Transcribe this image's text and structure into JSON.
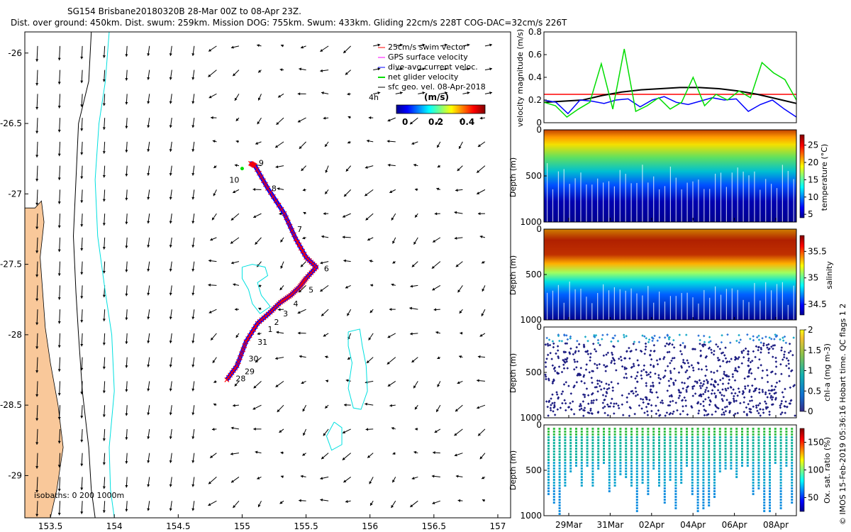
{
  "header": {
    "title": "SG154 Brisbane20180320B 28-Mar 00Z to 08-Apr 23Z.",
    "subtitle": "Dist. over ground: 450km. Dist. swum: 259km. Mission DOG: 755km. Swum: 433km. Gliding 22cm/s 228T COG-DAC=32cm/s 226T"
  },
  "colors": {
    "land": "#f9c89a",
    "isobath200": "#000000",
    "isobath1000": "#00e0e0",
    "track_red": "#ff0000",
    "track_blue": "#0000ff",
    "green": "#00dd00",
    "black": "#000000"
  },
  "chart_data": [
    {
      "id": "map",
      "type": "scatter",
      "xlabel": "",
      "ylabel": "",
      "xlim": [
        153.3,
        157.1
      ],
      "ylim": [
        -29.3,
        -25.85
      ],
      "xticks": [
        "153.5",
        "154",
        "154.5",
        "155",
        "155.5",
        "156",
        "156.5",
        "157"
      ],
      "yticks": [
        "-26",
        "-26.5",
        "-27",
        "-27.5",
        "-28",
        "-28.5",
        "-29"
      ],
      "isobath_label": "isobaths: 0   200  1000m",
      "legend": [
        {
          "label": "25cm/s swim vector",
          "color": "#ff0000"
        },
        {
          "label": "GPS surface velocity",
          "color": "#ff00ff"
        },
        {
          "label": "dive-avg current veloc.",
          "color": "#0000ff"
        },
        {
          "label": "net glider velocity",
          "color": "#00dd00"
        },
        {
          "label": "sfc geo. vel. 08-Apr-2018",
          "color": "#000000"
        }
      ],
      "legend_scale_label": "4h",
      "colorbar": {
        "label": "(m/s)",
        "ticks": [
          "0",
          "0.2",
          "0.4"
        ]
      },
      "track": [
        [
          154.88,
          -28.32
        ],
        [
          154.96,
          -28.22
        ],
        [
          155.03,
          -28.05
        ],
        [
          155.12,
          -27.92
        ],
        [
          155.22,
          -27.84
        ],
        [
          155.3,
          -27.77
        ],
        [
          155.38,
          -27.72
        ],
        [
          155.45,
          -27.66
        ],
        [
          155.5,
          -27.6
        ],
        [
          155.58,
          -27.52
        ],
        [
          155.5,
          -27.45
        ],
        [
          155.42,
          -27.32
        ],
        [
          155.33,
          -27.14
        ],
        [
          155.2,
          -26.96
        ],
        [
          155.1,
          -26.8
        ],
        [
          155.06,
          -26.78
        ]
      ],
      "dive_labels": [
        {
          "t": "9",
          "x": 155.13,
          "y": -26.8
        },
        {
          "t": "10",
          "x": 154.9,
          "y": -26.92
        },
        {
          "t": "8",
          "x": 155.23,
          "y": -26.98
        },
        {
          "t": "7",
          "x": 155.43,
          "y": -27.27
        },
        {
          "t": "6",
          "x": 155.64,
          "y": -27.55
        },
        {
          "t": "5",
          "x": 155.52,
          "y": -27.7
        },
        {
          "t": "4",
          "x": 155.4,
          "y": -27.8
        },
        {
          "t": "3",
          "x": 155.32,
          "y": -27.87
        },
        {
          "t": "2",
          "x": 155.25,
          "y": -27.93
        },
        {
          "t": "1",
          "x": 155.2,
          "y": -27.98
        },
        {
          "t": "31",
          "x": 155.12,
          "y": -28.07
        },
        {
          "t": "30",
          "x": 155.05,
          "y": -28.19
        },
        {
          "t": "29",
          "x": 155.02,
          "y": -28.28
        },
        {
          "t": "28",
          "x": 154.95,
          "y": -28.33
        }
      ],
      "cyan_contours": [
        [
          [
            155.0,
            -27.52
          ],
          [
            155.08,
            -27.5
          ],
          [
            155.18,
            -27.52
          ],
          [
            155.2,
            -27.58
          ],
          [
            155.12,
            -27.63
          ],
          [
            155.15,
            -27.72
          ],
          [
            155.22,
            -27.8
          ],
          [
            155.14,
            -27.85
          ],
          [
            155.08,
            -27.78
          ],
          [
            155.05,
            -27.68
          ],
          [
            155.0,
            -27.6
          ],
          [
            155.0,
            -27.52
          ]
        ],
        [
          [
            155.83,
            -27.98
          ],
          [
            155.92,
            -27.96
          ],
          [
            155.94,
            -28.08
          ],
          [
            155.97,
            -28.22
          ],
          [
            155.98,
            -28.4
          ],
          [
            155.93,
            -28.53
          ],
          [
            155.87,
            -28.52
          ],
          [
            155.83,
            -28.38
          ],
          [
            155.86,
            -28.2
          ],
          [
            155.83,
            -28.08
          ],
          [
            155.83,
            -27.98
          ]
        ],
        [
          [
            155.72,
            -28.62
          ],
          [
            155.78,
            -28.66
          ],
          [
            155.78,
            -28.78
          ],
          [
            155.7,
            -28.82
          ],
          [
            155.66,
            -28.72
          ],
          [
            155.72,
            -28.62
          ]
        ]
      ]
    },
    {
      "id": "velocity",
      "type": "line",
      "ylabel": "velocity magnitude (m/s)",
      "ylim": [
        0,
        0.8
      ],
      "yticks": [
        "0",
        "0.2",
        "0.4",
        "0.6",
        "0.8"
      ],
      "series": [
        {
          "name": "25cm/s swim vector",
          "color": "#ff0000",
          "values": [
            0.25,
            0.25
          ]
        },
        {
          "name": "sfc geo. vel.",
          "color": "#000000",
          "values": [
            0.18,
            0.19,
            0.2,
            0.24,
            0.27,
            0.29,
            0.3,
            0.31,
            0.31,
            0.3,
            0.28,
            0.25,
            0.21,
            0.17
          ]
        },
        {
          "name": "dive-avg current veloc.",
          "color": "#0000ff",
          "values": [
            0.2,
            0.18,
            0.08,
            0.2,
            0.19,
            0.17,
            0.2,
            0.21,
            0.14,
            0.2,
            0.23,
            0.18,
            0.16,
            0.19,
            0.22,
            0.2,
            0.21,
            0.1,
            0.16,
            0.2,
            0.12,
            0.05
          ]
        },
        {
          "name": "net glider velocity",
          "color": "#00dd00",
          "values": [
            0.18,
            0.15,
            0.05,
            0.12,
            0.18,
            0.52,
            0.12,
            0.65,
            0.1,
            0.15,
            0.22,
            0.12,
            0.18,
            0.4,
            0.15,
            0.25,
            0.2,
            0.28,
            0.22,
            0.53,
            0.44,
            0.38,
            0.2
          ]
        }
      ]
    },
    {
      "id": "temperature",
      "type": "heatmap",
      "ylabel": "Depth (m)",
      "cbar_label": "temperature (°C)",
      "ylim": [
        1000,
        0
      ],
      "yticks": [
        "0",
        "500",
        "1000"
      ],
      "cbar_ticks": [
        "5",
        "10",
        "15",
        "20",
        "25"
      ],
      "cbar_range": [
        4,
        28
      ]
    },
    {
      "id": "salinity",
      "type": "heatmap",
      "ylabel": "Depth (m)",
      "cbar_label": "salinity",
      "ylim": [
        1000,
        0
      ],
      "yticks": [
        "0",
        "500",
        "1000"
      ],
      "cbar_ticks": [
        "34.5",
        "35",
        "35.5"
      ],
      "cbar_range": [
        34.3,
        35.8
      ]
    },
    {
      "id": "chla",
      "type": "scatter",
      "ylabel": "Depth (m)",
      "cbar_label": "chl-a (mg m-3)",
      "ylim": [
        1000,
        0
      ],
      "yticks": [
        "0",
        "500",
        "1000"
      ],
      "cbar_ticks": [
        "0",
        "0.5",
        "1",
        "1.5",
        "2"
      ],
      "cbar_range": [
        0,
        2
      ]
    },
    {
      "id": "oxygen",
      "type": "scatter",
      "ylabel": "Depth (m)",
      "cbar_label": "Ox. sat. ratio (%)",
      "ylim": [
        1000,
        0
      ],
      "yticks": [
        "0",
        "500",
        "1000"
      ],
      "cbar_ticks": [
        "50",
        "100",
        "150"
      ],
      "cbar_range": [
        25,
        175
      ]
    }
  ],
  "time_axis": {
    "ticks": [
      "29Mar",
      "31Mar",
      "02Apr",
      "04Apr",
      "06Apr",
      "08Apr"
    ]
  },
  "footer": {
    "credit": "© IMOS 15-Feb-2019 05:36:16 Hobart time. QC flags 1  2"
  }
}
